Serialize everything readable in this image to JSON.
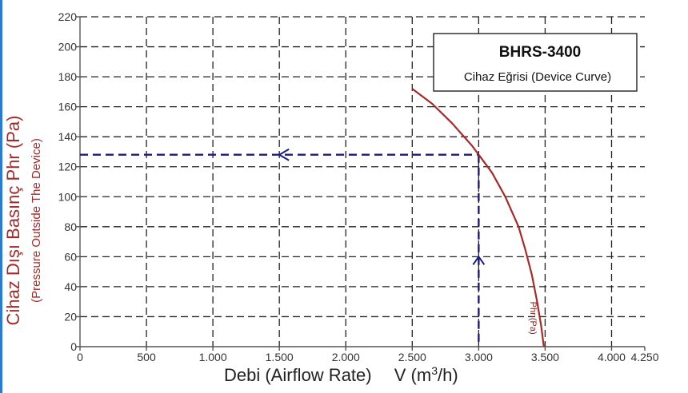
{
  "chart_data": {
    "type": "line",
    "legend_title": "BHRS-3400",
    "legend_subtitle": "Cihaz Eğrisi (Device Curve)",
    "legend_position": "top-right",
    "ylabel": "Cihaz Dışı Basınç Phr (Pa)",
    "ylabel_sub": "(Pressure Outside The Device)",
    "xlabel": "Debi (Airflow Rate)",
    "xlabel_unit_prefix": "V (m",
    "xlabel_unit_sup": "3",
    "xlabel_unit_suffix": "/h)",
    "xlim": [
      0,
      4250
    ],
    "ylim": [
      0,
      220
    ],
    "xticks": [
      0,
      500,
      1000,
      1500,
      2000,
      2500,
      3000,
      3500,
      4000,
      4250
    ],
    "xtick_labels": [
      "0",
      "500",
      "1.000",
      "1.500",
      "2.000",
      "2.500",
      "3.000",
      "3.500",
      "4.000",
      "4.250"
    ],
    "yticks": [
      0,
      20,
      40,
      60,
      80,
      100,
      120,
      140,
      160,
      180,
      200,
      220
    ],
    "ytick_labels": [
      "0",
      "20",
      "40",
      "60",
      "80",
      "100",
      "120",
      "140",
      "160",
      "180",
      "200",
      "220"
    ],
    "grid": true,
    "series": [
      {
        "name": "Phr (Pa)",
        "color": "#a52a2a",
        "x": [
          2500,
          2650,
          2800,
          2950,
          3000,
          3100,
          3200,
          3300,
          3350,
          3400,
          3440,
          3470,
          3490
        ],
        "y": [
          172,
          162,
          149,
          134,
          128,
          116,
          100,
          80,
          65,
          48,
          30,
          14,
          0
        ]
      }
    ],
    "operating_point": {
      "x": 3000,
      "y": 128,
      "color": "#1c1c7a"
    }
  }
}
